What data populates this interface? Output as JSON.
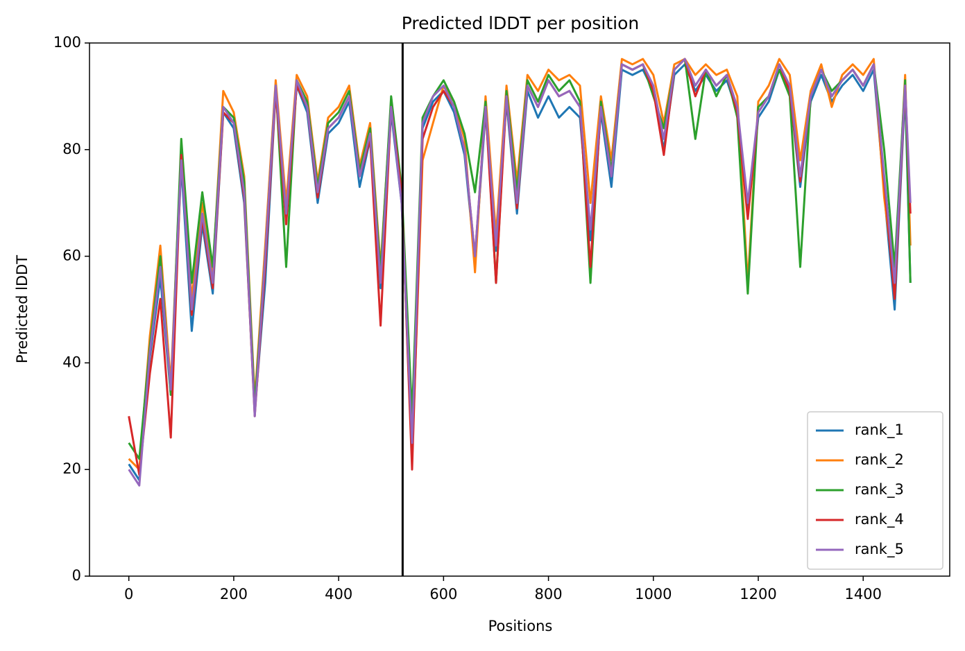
{
  "chart_data": {
    "type": "line",
    "title": "Predicted lDDT per position",
    "x_label": "Positions",
    "y_label": "Predicted lDDT",
    "xlim": [
      -75,
      1565
    ],
    "ylim": [
      0,
      100
    ],
    "xticks": [
      0,
      200,
      400,
      600,
      800,
      1000,
      1200,
      1400
    ],
    "yticks": [
      0,
      20,
      40,
      60,
      80,
      100
    ],
    "vlines": [
      522
    ],
    "grid": false,
    "legend": "lower right",
    "x": [
      0,
      20,
      40,
      60,
      80,
      100,
      120,
      140,
      160,
      180,
      200,
      220,
      240,
      260,
      280,
      300,
      320,
      340,
      360,
      380,
      400,
      420,
      440,
      460,
      480,
      500,
      520,
      540,
      560,
      580,
      600,
      620,
      640,
      660,
      680,
      700,
      720,
      740,
      760,
      780,
      800,
      820,
      840,
      860,
      880,
      900,
      920,
      940,
      960,
      980,
      1000,
      1020,
      1040,
      1060,
      1080,
      1100,
      1120,
      1140,
      1160,
      1180,
      1200,
      1220,
      1240,
      1260,
      1280,
      1300,
      1320,
      1340,
      1360,
      1380,
      1400,
      1420,
      1440,
      1460,
      1480,
      1490
    ],
    "series": [
      {
        "name": "rank_1",
        "color": "#1f77b4",
        "values": [
          21,
          18,
          41,
          56,
          34,
          77,
          46,
          66,
          53,
          87,
          84,
          70,
          31,
          55,
          91,
          67,
          92,
          87,
          70,
          83,
          85,
          89,
          73,
          82,
          54,
          87,
          70,
          24,
          84,
          89,
          91,
          87,
          79,
          59,
          87,
          61,
          89,
          68,
          91,
          86,
          90,
          86,
          88,
          86,
          63,
          87,
          73,
          95,
          94,
          95,
          91,
          80,
          94,
          96,
          91,
          94,
          91,
          93,
          87,
          68,
          86,
          89,
          95,
          91,
          73,
          89,
          94,
          89,
          92,
          94,
          91,
          95,
          72,
          50,
          91,
          55
        ]
      },
      {
        "name": "rank_2",
        "color": "#ff7f0e",
        "values": [
          22,
          20,
          45,
          62,
          36,
          80,
          52,
          70,
          57,
          91,
          87,
          75,
          33,
          62,
          93,
          70,
          94,
          90,
          74,
          86,
          88,
          92,
          77,
          85,
          58,
          89,
          71,
          22,
          78,
          85,
          92,
          89,
          82,
          57,
          90,
          64,
          92,
          74,
          94,
          91,
          95,
          93,
          94,
          92,
          70,
          90,
          78,
          97,
          96,
          97,
          94,
          85,
          96,
          97,
          94,
          96,
          94,
          95,
          90,
          55,
          89,
          92,
          97,
          94,
          78,
          91,
          96,
          88,
          94,
          96,
          94,
          97,
          71,
          55,
          94,
          62
        ]
      },
      {
        "name": "rank_3",
        "color": "#2ca02c",
        "values": [
          25,
          22,
          43,
          60,
          34,
          82,
          55,
          72,
          58,
          88,
          86,
          74,
          32,
          60,
          92,
          58,
          93,
          89,
          73,
          85,
          87,
          91,
          76,
          84,
          57,
          90,
          73,
          30,
          86,
          90,
          93,
          89,
          83,
          72,
          89,
          55,
          91,
          72,
          93,
          89,
          94,
          91,
          93,
          89,
          55,
          89,
          76,
          96,
          95,
          96,
          90,
          84,
          95,
          97,
          82,
          95,
          90,
          94,
          86,
          53,
          88,
          90,
          95,
          90,
          58,
          90,
          95,
          91,
          93,
          95,
          92,
          96,
          80,
          58,
          93,
          55
        ]
      },
      {
        "name": "rank_4",
        "color": "#d62728",
        "values": [
          30,
          19,
          38,
          52,
          26,
          79,
          49,
          67,
          54,
          87,
          85,
          71,
          30,
          58,
          91,
          66,
          92,
          88,
          71,
          84,
          86,
          90,
          75,
          82,
          47,
          88,
          72,
          20,
          82,
          88,
          91,
          88,
          80,
          60,
          88,
          55,
          90,
          69,
          92,
          88,
          93,
          90,
          91,
          88,
          58,
          88,
          75,
          96,
          95,
          96,
          91,
          79,
          95,
          97,
          90,
          95,
          92,
          94,
          87,
          67,
          87,
          90,
          96,
          91,
          74,
          90,
          95,
          90,
          93,
          95,
          92,
          96,
          74,
          52,
          92,
          68
        ]
      },
      {
        "name": "rank_5",
        "color": "#9467bd",
        "values": [
          20,
          17,
          42,
          58,
          35,
          78,
          50,
          68,
          55,
          88,
          85,
          72,
          30,
          60,
          92,
          68,
          93,
          88,
          72,
          84,
          86,
          90,
          75,
          83,
          55,
          88,
          70,
          25,
          85,
          90,
          92,
          88,
          80,
          60,
          88,
          62,
          90,
          70,
          92,
          88,
          93,
          90,
          91,
          88,
          65,
          88,
          75,
          96,
          95,
          96,
          92,
          82,
          95,
          97,
          92,
          95,
          92,
          94,
          88,
          70,
          87,
          90,
          96,
          92,
          75,
          90,
          95,
          90,
          93,
          95,
          92,
          96,
          75,
          55,
          92,
          70
        ]
      }
    ]
  }
}
